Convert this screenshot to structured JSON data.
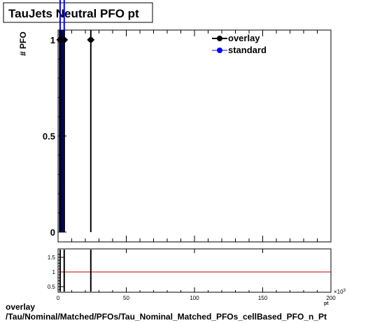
{
  "title": "TauJets Neutral PFO pt",
  "ylabel": "# PFO",
  "x_exponent": "×10",
  "x_exponent_power": "3",
  "x_axis_clipped_label": "pt",
  "footer": {
    "line1": "overlay",
    "line2": "/Tau/Nominal/Matched/PFOs/Tau_Nominal_Matched_PFOs_cellBased_PFO_n_Pt"
  },
  "colors": {
    "overlay": "#000000",
    "standard": "#0000ff",
    "ratio_line": "#c00000",
    "standard_fill": "#000060"
  },
  "chart_data": [
    {
      "type": "line",
      "panel": "main",
      "title": "TauJets Neutral PFO pt",
      "xlabel": "pt",
      "ylabel": "# PFO",
      "xlim": [
        0,
        200
      ],
      "ylim": [
        0,
        1.05
      ],
      "x_tick_labels": [
        "0",
        "50",
        "100",
        "150",
        "200"
      ],
      "y_tick_labels": [
        "0",
        "0.5",
        "1"
      ],
      "x_ticks": [
        0,
        50,
        100,
        150,
        200
      ],
      "y_ticks": [
        0,
        0.5,
        1
      ],
      "legend_position": "top-right",
      "series": [
        {
          "name": "overlay",
          "marker": "circle",
          "color": "#000000",
          "x": [
            1.5,
            4.5,
            24.0
          ],
          "y": [
            1,
            1,
            1
          ],
          "y_err": [
            1,
            1,
            1
          ]
        },
        {
          "name": "standard",
          "marker": "circle",
          "color": "#0000ff",
          "x": [
            1.5,
            4.5
          ],
          "y": [
            1,
            1
          ],
          "y_err": [
            1,
            1
          ]
        }
      ]
    },
    {
      "type": "line",
      "panel": "ratio",
      "xlim": [
        0,
        200
      ],
      "ylim": [
        0.3,
        1.7
      ],
      "x_tick_labels": [
        "0",
        "50",
        "100",
        "150",
        "200"
      ],
      "y_tick_labels": [
        "0.5",
        "1",
        "1.5"
      ],
      "x_ticks": [
        0,
        50,
        100,
        150,
        200
      ],
      "y_ticks": [
        0.5,
        1,
        1.5
      ],
      "reference_line": 1,
      "spikes_x": [
        1.5,
        4.5,
        24.0
      ]
    }
  ]
}
